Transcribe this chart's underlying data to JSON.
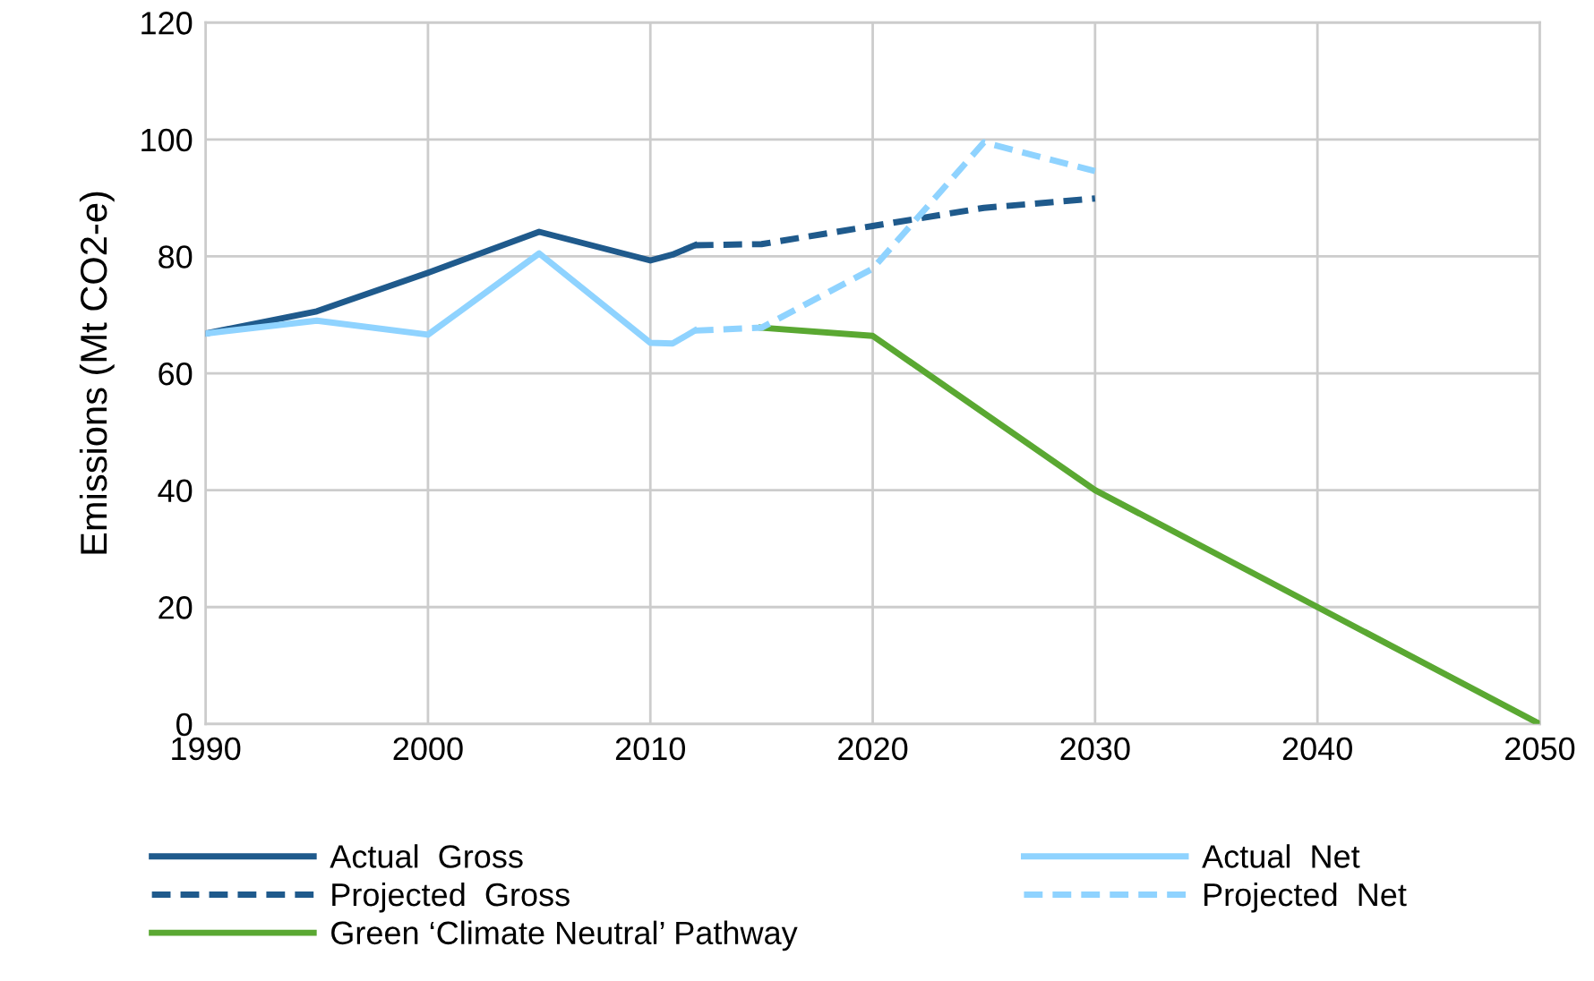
{
  "chart_data": {
    "type": "line",
    "ylabel": "Emissions (Mt CO2-e)",
    "xlim": [
      1990,
      2050
    ],
    "ylim": [
      0,
      120
    ],
    "xticks": [
      1990,
      2000,
      2010,
      2020,
      2030,
      2040,
      2050
    ],
    "yticks": [
      0,
      20,
      40,
      60,
      80,
      100,
      120
    ],
    "grid": true,
    "legend": "bottom",
    "marker": "none",
    "series": [
      {
        "name": "Actual  Gross",
        "color": "#1f5a8c",
        "line_style": "solid",
        "x": [
          1990,
          1995,
          2000,
          2005,
          2010,
          2011,
          2012
        ],
        "values": [
          66.8,
          70.6,
          77.2,
          84.2,
          79.3,
          80.3,
          81.9
        ]
      },
      {
        "name": "Projected  Gross",
        "color": "#1f5a8c",
        "line_style": "dashed",
        "x": [
          2012,
          2015,
          2020,
          2025,
          2030
        ],
        "values": [
          81.9,
          82.1,
          85.2,
          88.3,
          89.9
        ]
      },
      {
        "name": "Green ‘Climate Neutral’ Pathway",
        "color": "#5aa832",
        "line_style": "solid",
        "x": [
          2015,
          2020,
          2030,
          2040,
          2050
        ],
        "values": [
          67.8,
          66.4,
          40,
          20,
          0
        ]
      },
      {
        "name": "Actual  Net",
        "color": "#8fd3ff",
        "line_style": "solid",
        "x": [
          1990,
          1995,
          2000,
          2005,
          2010,
          2011,
          2012
        ],
        "values": [
          66.8,
          69,
          66.6,
          80.5,
          65.2,
          65.1,
          67.3
        ]
      },
      {
        "name": "Projected  Net",
        "color": "#8fd3ff",
        "line_style": "dashed",
        "x": [
          2012,
          2015,
          2020,
          2025,
          2030
        ],
        "values": [
          67.3,
          67.8,
          77.9,
          99.5,
          94.6
        ]
      }
    ]
  }
}
